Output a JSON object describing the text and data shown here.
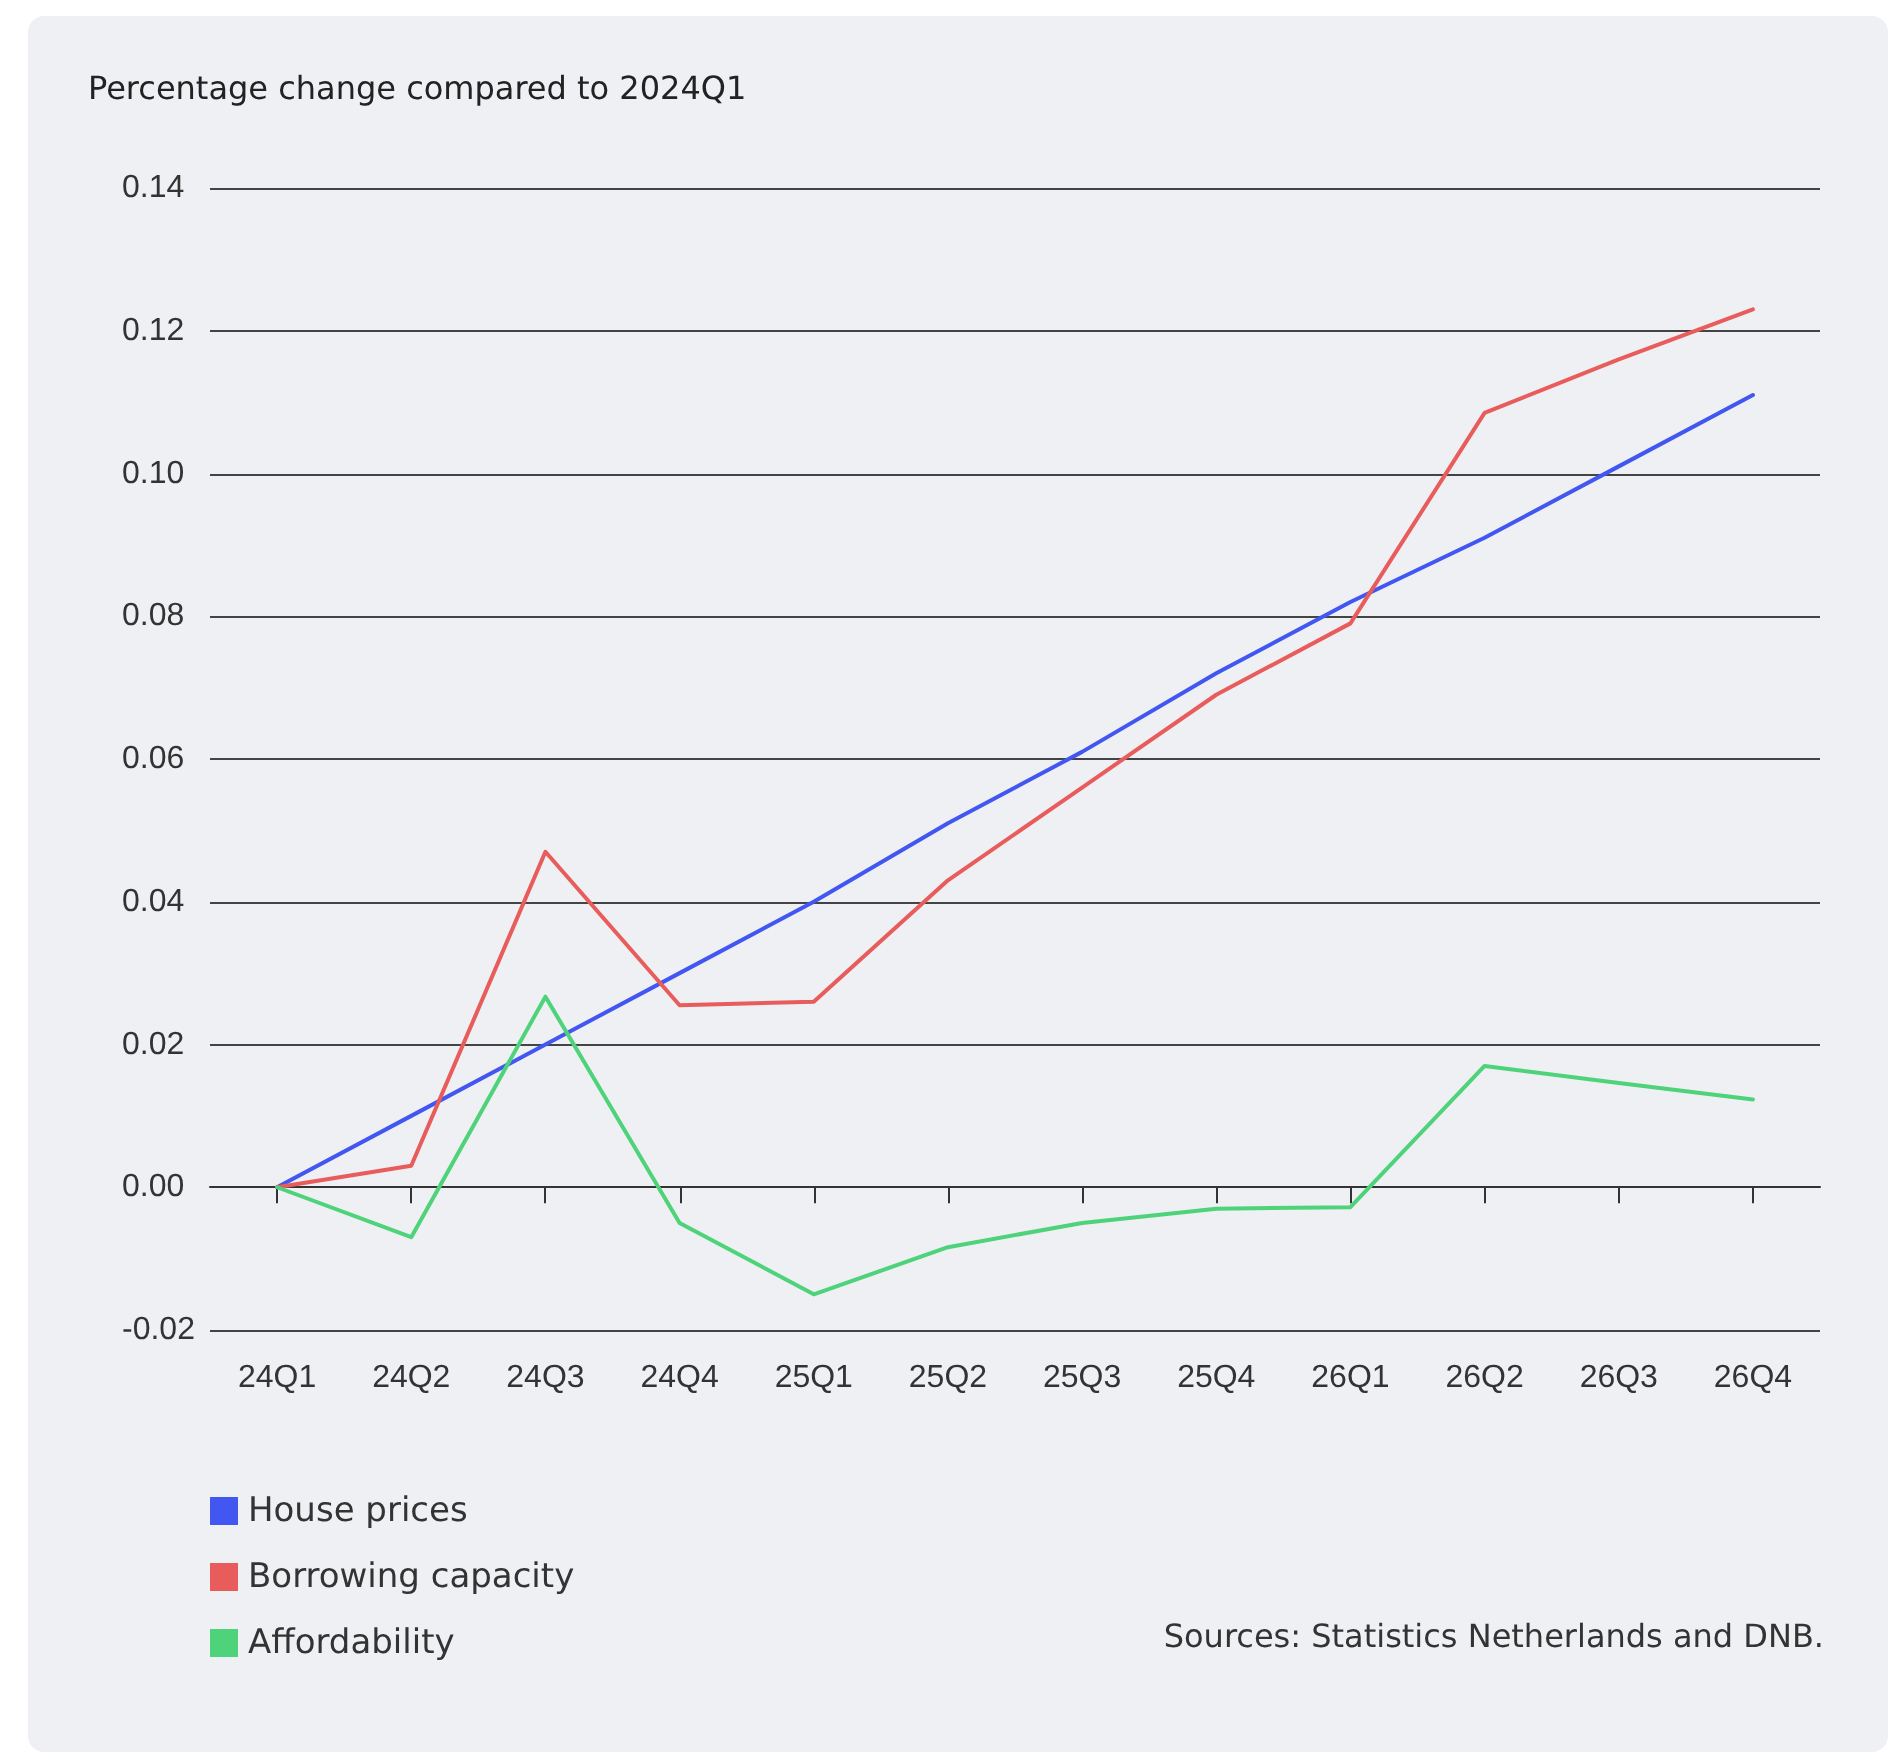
{
  "chart_data": {
    "type": "line",
    "ylabel": "Percentage change compared to 2024Q1",
    "categories": [
      "24Q1",
      "24Q2",
      "24Q3",
      "24Q4",
      "25Q1",
      "25Q2",
      "25Q3",
      "25Q4",
      "26Q1",
      "26Q2",
      "26Q3",
      "26Q4"
    ],
    "series": [
      {
        "name": "House prices",
        "color": "#4257f2",
        "values": [
          0,
          0.01,
          0.02,
          0.03,
          0.04,
          0.051,
          0.061,
          0.072,
          0.082,
          0.091,
          0.101,
          0.111
        ]
      },
      {
        "name": "Borrowing capacity",
        "color": "#e95c5c",
        "values": [
          0,
          0.003,
          0.047,
          0.0255,
          0.026,
          0.043,
          0.056,
          0.069,
          0.079,
          0.1085,
          0.116,
          0.123
        ]
      },
      {
        "name": "Affordability",
        "color": "#4ed37a",
        "values": [
          0,
          -0.007,
          0.0267,
          -0.005,
          -0.015,
          -0.0084,
          -0.005,
          -0.003,
          -0.0028,
          0.017,
          0.0146,
          0.0123
        ]
      }
    ],
    "ylim": [
      -0.02,
      0.14
    ],
    "yticks": [
      {
        "value": -0.02,
        "label": "-0.02"
      },
      {
        "value": 0,
        "label": "0.00"
      },
      {
        "value": 0.02,
        "label": "0.02"
      },
      {
        "value": 0.04,
        "label": "0.04"
      },
      {
        "value": 0.06,
        "label": "0.06"
      },
      {
        "value": 0.08,
        "label": "0.08"
      },
      {
        "value": 0.1,
        "label": "0.10"
      },
      {
        "value": 0.12,
        "label": "0.12"
      },
      {
        "value": 0.14,
        "label": "0.14"
      }
    ],
    "grid": "y",
    "legend": "bottom left",
    "marker": "none",
    "line_style": "solid",
    "annotations": [
      "Sources: Statistics Netherlands and DNB."
    ]
  }
}
